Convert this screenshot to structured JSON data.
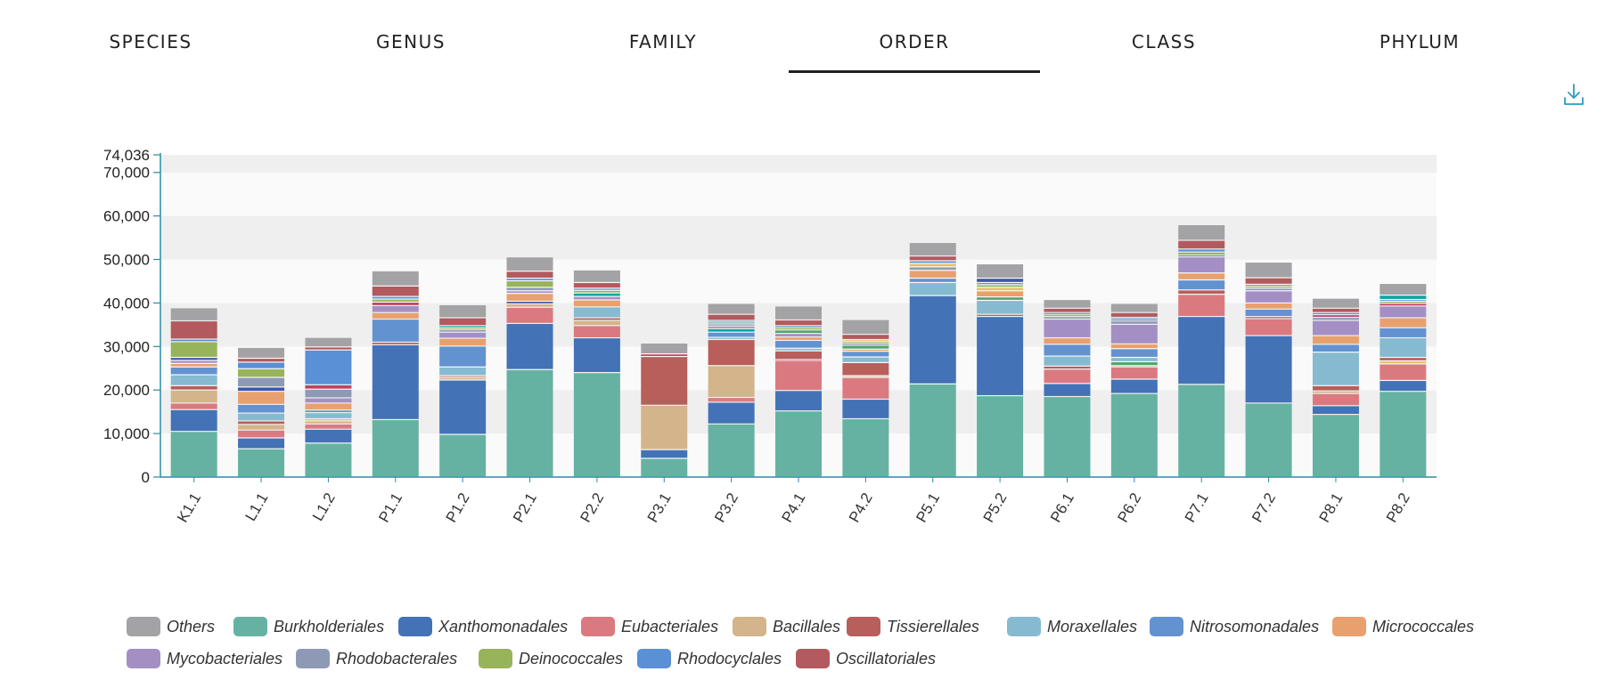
{
  "tabs": [
    {
      "label": "SPECIES",
      "active": false
    },
    {
      "label": "GENUS",
      "active": false
    },
    {
      "label": "FAMILY",
      "active": false
    },
    {
      "label": "ORDER",
      "active": true
    },
    {
      "label": "CLASS",
      "active": false
    },
    {
      "label": "PHYLUM",
      "active": false
    }
  ],
  "download_icon": "download-icon",
  "colors": {
    "accent": "#2a9dbb",
    "axis": "#2a8ca6",
    "band_dark": "#efefef",
    "band_light": "#fafafa",
    "active_tab_underline": "#1f1f1f"
  },
  "chart_data": {
    "type": "bar",
    "stacked": true,
    "title": "",
    "xlabel": "",
    "ylabel": "",
    "ylim": [
      0,
      74036
    ],
    "y_ticks": [
      "0",
      "10,000",
      "20,000",
      "30,000",
      "40,000",
      "50,000",
      "60,000",
      "70,000",
      "74,036"
    ],
    "y_tick_values": [
      0,
      10000,
      20000,
      30000,
      40000,
      50000,
      60000,
      70000,
      74036
    ],
    "grid": false,
    "legend_position": "bottom",
    "categories": [
      "K1.1",
      "L1.1",
      "L1.2",
      "P1.1",
      "P1.2",
      "P2.1",
      "P2.2",
      "P3.1",
      "P3.2",
      "P4.1",
      "P4.2",
      "P5.1",
      "P5.2",
      "P6.1",
      "P6.2",
      "P7.1",
      "P7.2",
      "P8.1",
      "P8.2"
    ],
    "series": [
      {
        "name": "Burkholderiales",
        "color": "#66b2a2",
        "values": [
          10500,
          6500,
          7800,
          13200,
          9800,
          24700,
          24000,
          4300,
          12200,
          15200,
          13400,
          21400,
          18700,
          18500,
          19200,
          21300,
          17000,
          14400,
          19700
        ]
      },
      {
        "name": "Xanthomonadales",
        "color": "#4373b6",
        "values": [
          5000,
          2500,
          3200,
          17200,
          12500,
          10600,
          8000,
          2000,
          5000,
          4700,
          4500,
          20300,
          18200,
          3000,
          3300,
          15600,
          15500,
          2000,
          2500
        ]
      },
      {
        "name": "Eubacteriales",
        "color": "#da7a80",
        "values": [
          1500,
          1800,
          1200,
          0,
          0,
          3700,
          2800,
          0,
          1100,
          6800,
          5000,
          0,
          0,
          3300,
          2800,
          5100,
          3900,
          2800,
          3800
        ]
      },
      {
        "name": "Bacillales",
        "color": "#d4b48a",
        "values": [
          3000,
          1300,
          700,
          0,
          600,
          800,
          1200,
          10200,
          7300,
          300,
          400,
          0,
          0,
          0,
          300,
          0,
          0,
          600,
          700
        ]
      },
      {
        "name": "Tissierellales",
        "color": "#b85e5b",
        "values": [
          1000,
          800,
          500,
          600,
          400,
          600,
          600,
          11200,
          6000,
          2000,
          3000,
          0,
          500,
          700,
          900,
          1000,
          500,
          1200,
          800
        ]
      },
      {
        "name": "Moraxellales",
        "color": "#86bad0",
        "values": [
          2500,
          1800,
          1400,
          0,
          2000,
          0,
          2500,
          600,
          500,
          600,
          1300,
          3000,
          3200,
          2300,
          1000,
          0,
          0,
          7700,
          4500
        ]
      },
      {
        "name": "Nitrosomonadales",
        "color": "#6392d0",
        "values": [
          1800,
          2000,
          600,
          5300,
          4800,
          0,
          0,
          0,
          1200,
          1800,
          1300,
          1000,
          800,
          2700,
          2000,
          2300,
          1700,
          1800,
          2300
        ]
      },
      {
        "name": "Micrococcales",
        "color": "#e8a16e",
        "values": [
          800,
          3000,
          1600,
          1500,
          1800,
          1800,
          1600,
          0,
          800,
          800,
          500,
          1800,
          1400,
          1500,
          1100,
          1600,
          1400,
          2000,
          2300
        ]
      },
      {
        "name": "Mycobacteriales",
        "color": "#a48fc5",
        "values": [
          700,
          1000,
          1200,
          1600,
          1400,
          600,
          800,
          0,
          600,
          800,
          900,
          0,
          0,
          4300,
          4500,
          3700,
          2800,
          3500,
          2700
        ]
      },
      {
        "name": "Rhodobacterales",
        "color": "#8e9ab5",
        "values": [
          700,
          2200,
          2000,
          800,
          600,
          800,
          800,
          0,
          500,
          800,
          500,
          800,
          800,
          600,
          800,
          400,
          600,
          700,
          600
        ]
      },
      {
        "name": "Deinococcales",
        "color": "#97b45b",
        "values": [
          3600,
          2000,
          1000,
          700,
          400,
          1500,
          600,
          0,
          400,
          500,
          400,
          800,
          600,
          500,
          400,
          700,
          500,
          600,
          500
        ]
      },
      {
        "name": "Rhodocyclales",
        "color": "#5990d6",
        "values": [
          600,
          1500,
          8000,
          600,
          500,
          600,
          500,
          0,
          400,
          500,
          400,
          600,
          500,
          400,
          400,
          700,
          400,
          500,
          400
        ]
      },
      {
        "name": "Oscillatoriales",
        "color": "#b25a5e",
        "values": [
          4200,
          900,
          700,
          2400,
          1800,
          1600,
          1300,
          0,
          1400,
          1300,
          1200,
          1100,
          1000,
          1000,
          1100,
          2000,
          1500,
          1000,
          1000
        ]
      },
      {
        "name": "Others",
        "color": "#a3a3a5",
        "values": [
          3000,
          2500,
          2200,
          3500,
          3000,
          3300,
          2900,
          2500,
          2500,
          3200,
          3400,
          3100,
          3300,
          2000,
          2100,
          3600,
          3600,
          2300,
          2700
        ]
      }
    ],
    "extra_fill_colors": [
      "#0ea5a4",
      "#e6c261",
      "#c43e63",
      "#4fa86b",
      "#3b5aa8"
    ]
  },
  "legend": [
    {
      "label": "Others",
      "color": "#a3a3a5"
    },
    {
      "label": "Burkholderiales",
      "color": "#66b2a2"
    },
    {
      "label": "Xanthomonadales",
      "color": "#4373b6"
    },
    {
      "label": "Eubacteriales",
      "color": "#da7a80"
    },
    {
      "label": "Bacillales",
      "color": "#d4b48a"
    },
    {
      "label": "Tissierellales",
      "color": "#b85e5b"
    },
    {
      "label": "Moraxellales",
      "color": "#86bad0"
    },
    {
      "label": "Nitrosomonadales",
      "color": "#6392d0"
    },
    {
      "label": "Micrococcales",
      "color": "#e8a16e"
    },
    {
      "label": "Mycobacteriales",
      "color": "#a48fc5"
    },
    {
      "label": "Rhodobacterales",
      "color": "#8e9ab5"
    },
    {
      "label": "Deinococcales",
      "color": "#97b45b"
    },
    {
      "label": "Rhodocyclales",
      "color": "#5990d6"
    },
    {
      "label": "Oscillatoriales",
      "color": "#b25a5e"
    }
  ]
}
